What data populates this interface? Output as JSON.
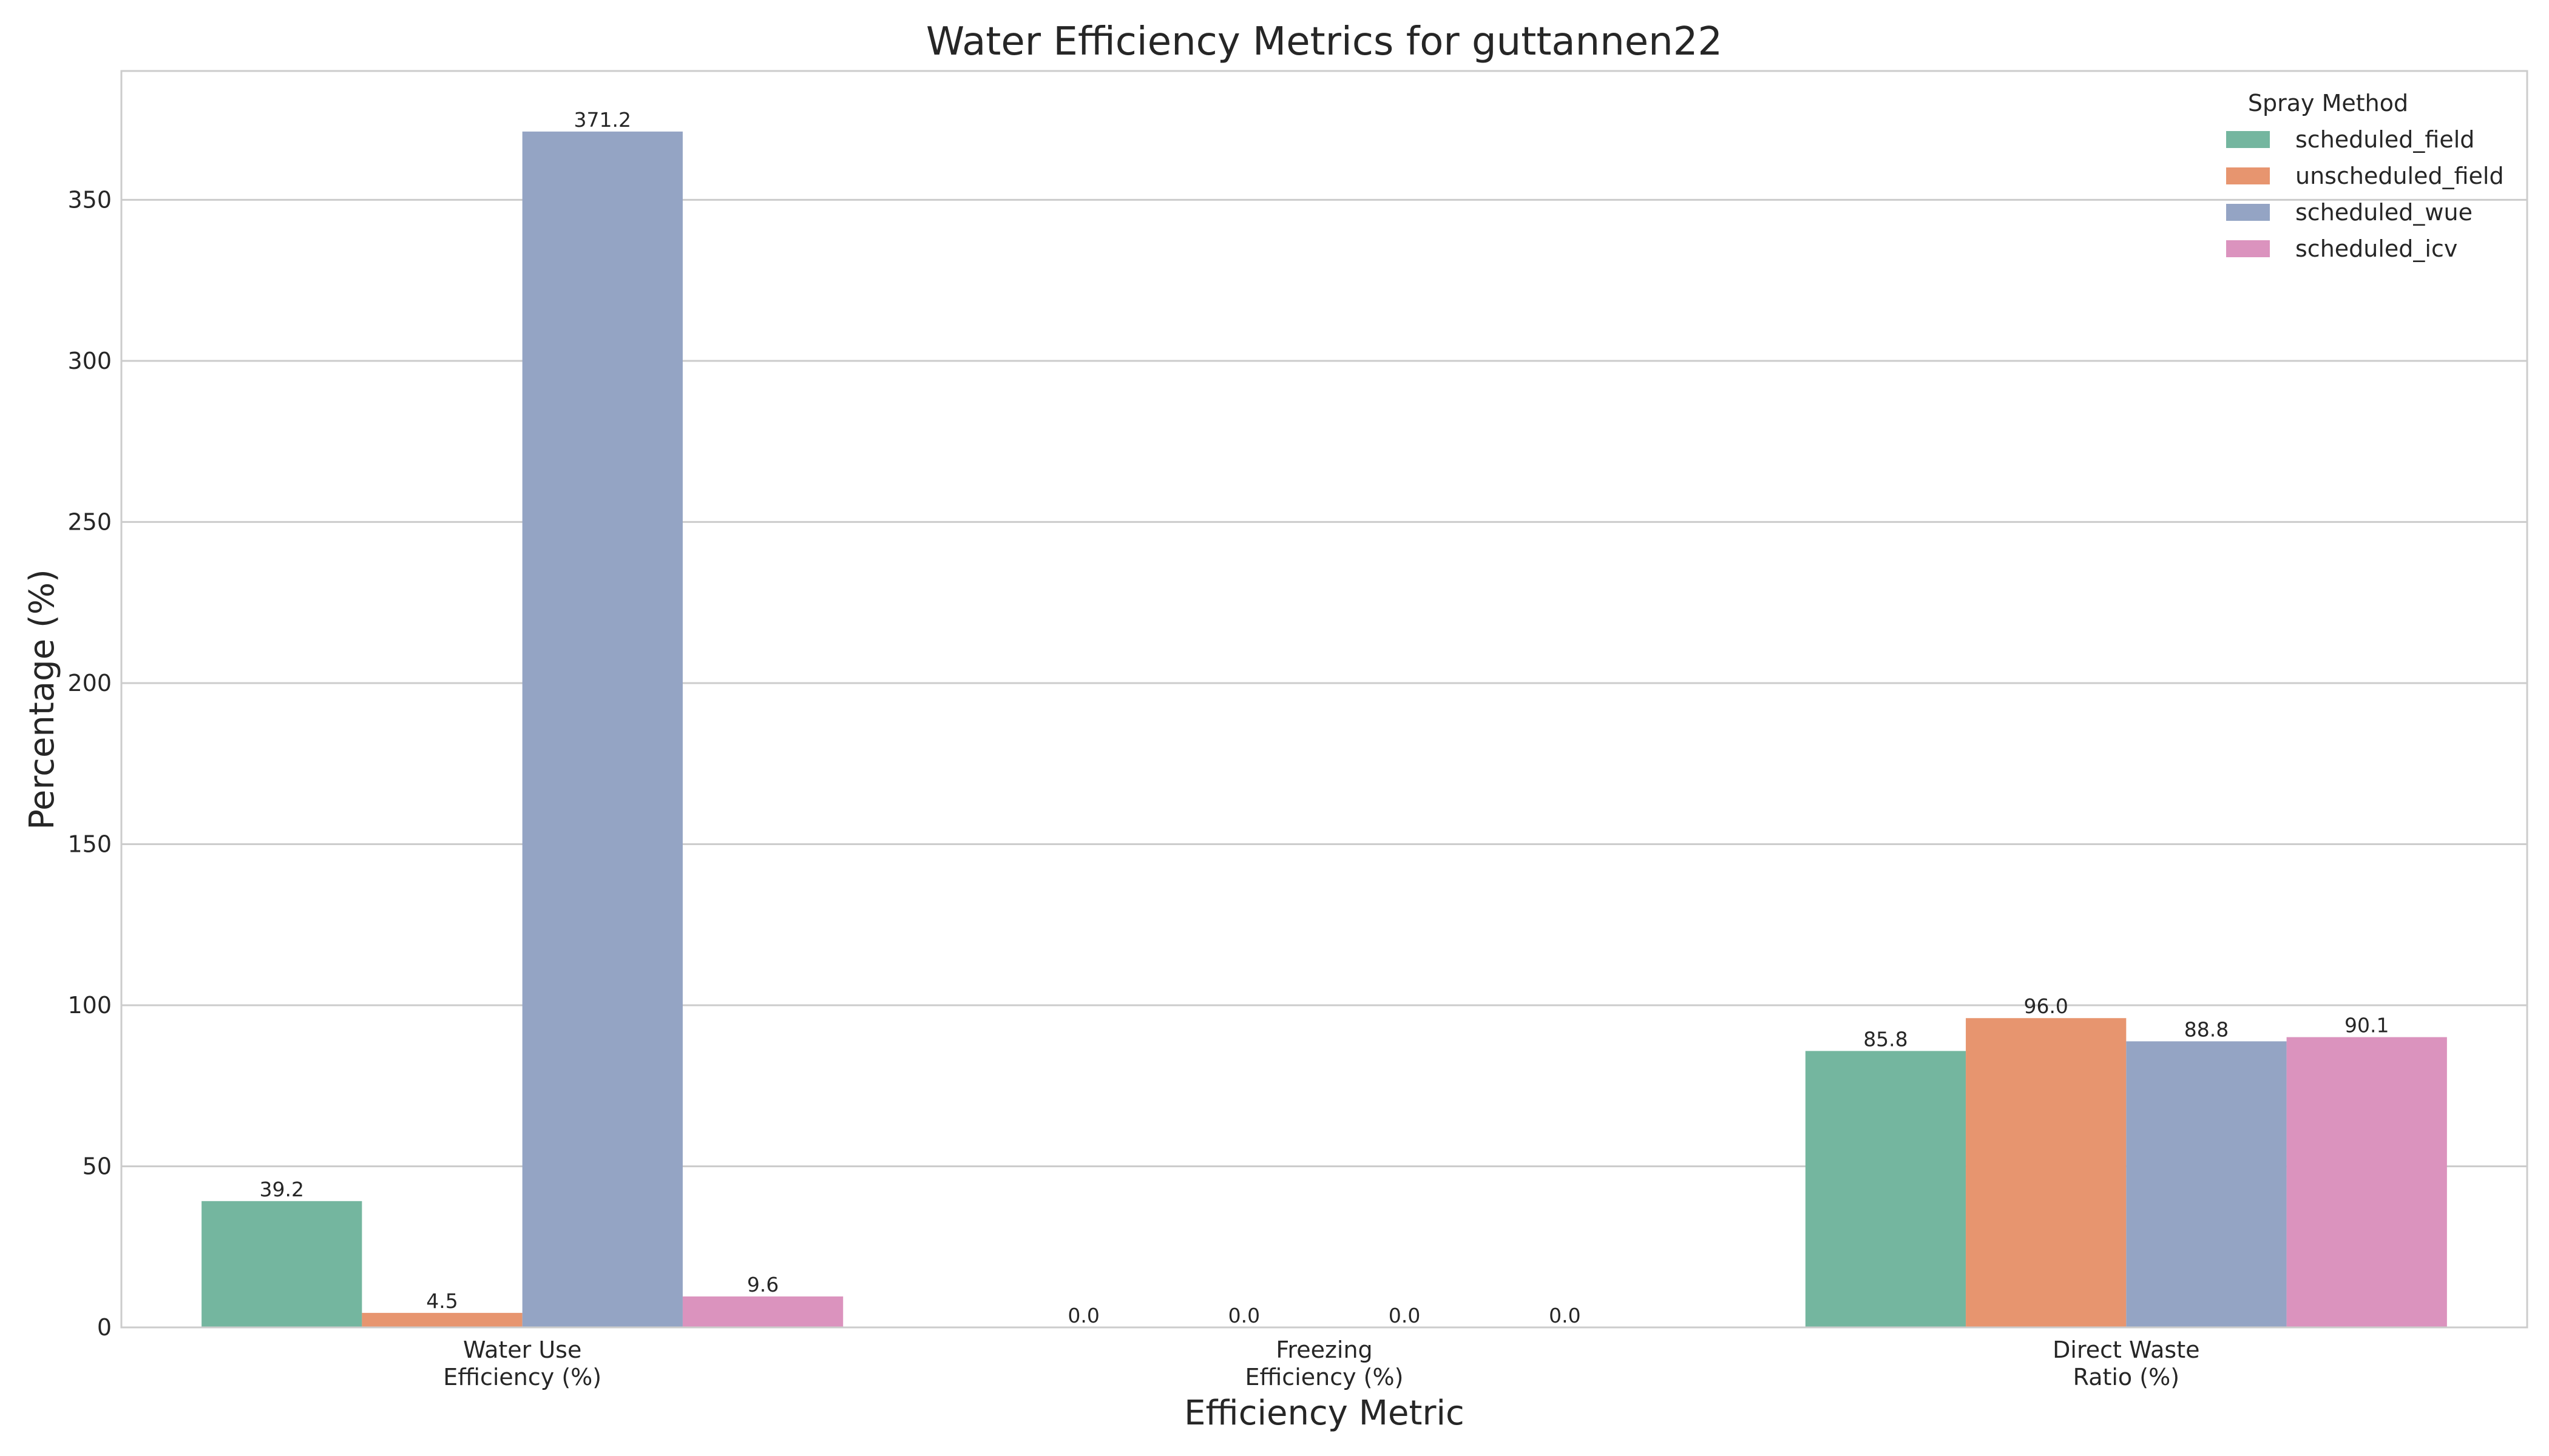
{
  "chart_data": {
    "type": "bar",
    "title": "Water Efficiency Metrics for guttannen22",
    "xlabel": "Efficiency Metric",
    "ylabel": "Percentage (%)",
    "categories": [
      [
        "Water Use",
        "Efficiency (%)"
      ],
      [
        "Freezing",
        "Efficiency (%)"
      ],
      [
        "Direct Waste",
        "Ratio (%)"
      ]
    ],
    "series": [
      {
        "name": "scheduled_field",
        "values": [
          39.2,
          0.0,
          85.8
        ],
        "labels": [
          "39.2",
          "0.0",
          "85.8"
        ],
        "color": "#74b69f"
      },
      {
        "name": "unscheduled_field",
        "values": [
          4.5,
          0.0,
          96.0
        ],
        "labels": [
          "4.5",
          "0.0",
          "96.0"
        ],
        "color": "#e7956f"
      },
      {
        "name": "scheduled_wue",
        "values": [
          371.2,
          0.0,
          88.8
        ],
        "labels": [
          "371.2",
          "0.0",
          "88.8"
        ],
        "color": "#94a4c4"
      },
      {
        "name": "scheduled_icv",
        "values": [
          9.6,
          0.0,
          90.1
        ],
        "labels": [
          "9.6",
          "0.0",
          "90.1"
        ],
        "color": "#db93be"
      }
    ],
    "ylim": [
      0,
      390
    ],
    "yticks": [
      {
        "value": 0,
        "label": "0"
      },
      {
        "value": 50,
        "label": "50"
      },
      {
        "value": 100,
        "label": "100"
      },
      {
        "value": 150,
        "label": "150"
      },
      {
        "value": 200,
        "label": "200"
      },
      {
        "value": 250,
        "label": "250"
      },
      {
        "value": 300,
        "label": "300"
      },
      {
        "value": 350,
        "label": "350"
      }
    ],
    "grid": "horizontal",
    "legend": {
      "title": "Spray Method",
      "placement": "top-right"
    }
  }
}
